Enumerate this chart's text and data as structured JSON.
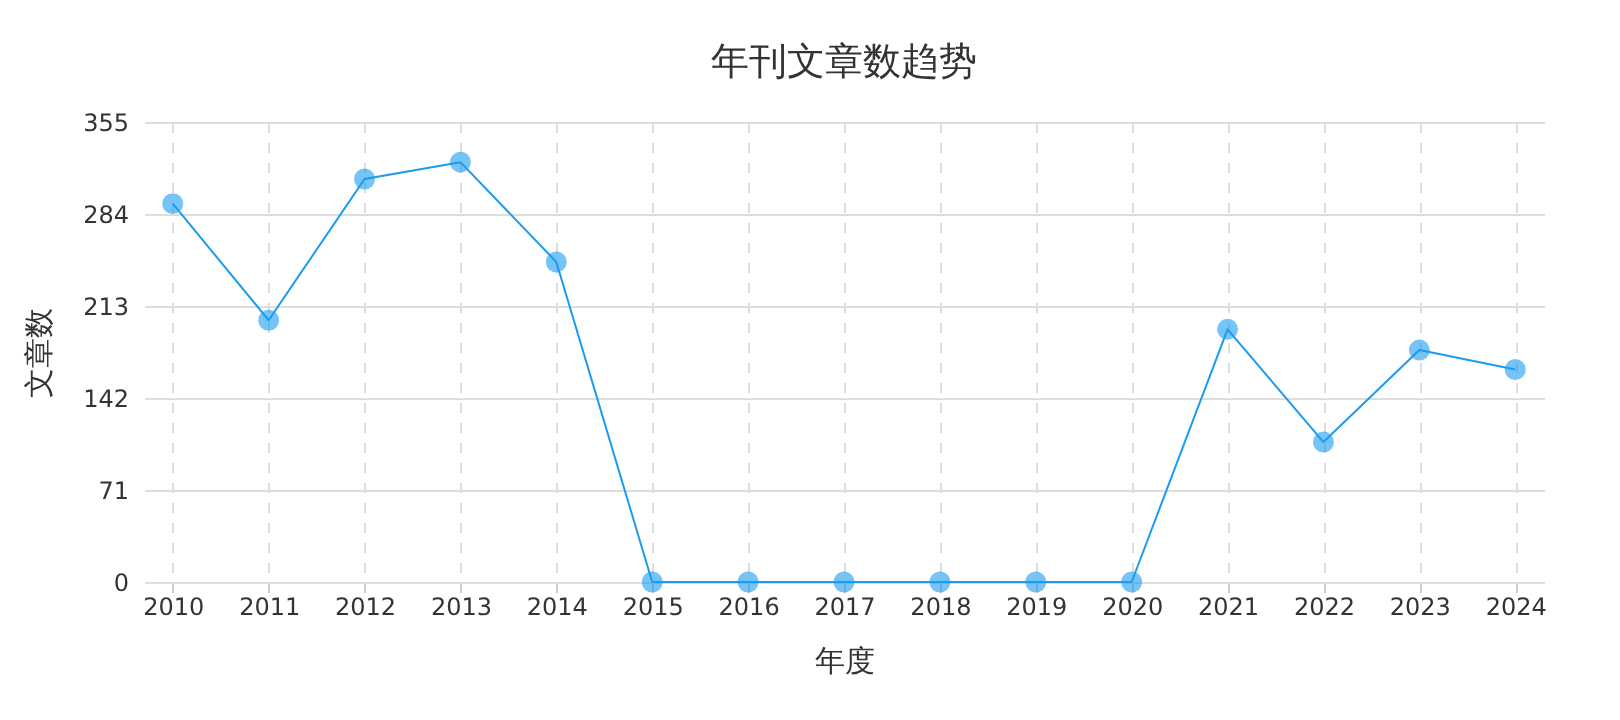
{
  "chart_data": {
    "type": "line",
    "title": "年刊文章数趋势",
    "xlabel": "年度",
    "ylabel": "文章数",
    "categories": [
      "2010",
      "2011",
      "2012",
      "2013",
      "2014",
      "2015",
      "2016",
      "2017",
      "2018",
      "2019",
      "2020",
      "2021",
      "2022",
      "2023",
      "2024"
    ],
    "series": [
      {
        "color": "#1a9bf0",
        "values": [
          292,
          202,
          311,
          324,
          247,
          0,
          0,
          0,
          0,
          0,
          0,
          195,
          108,
          179,
          164
        ]
      }
    ],
    "ylim": [
      0,
      355
    ],
    "yticks": [
      0,
      71,
      142,
      213,
      284,
      355
    ],
    "grid": true,
    "marker": "circle",
    "line_style": "solid"
  }
}
